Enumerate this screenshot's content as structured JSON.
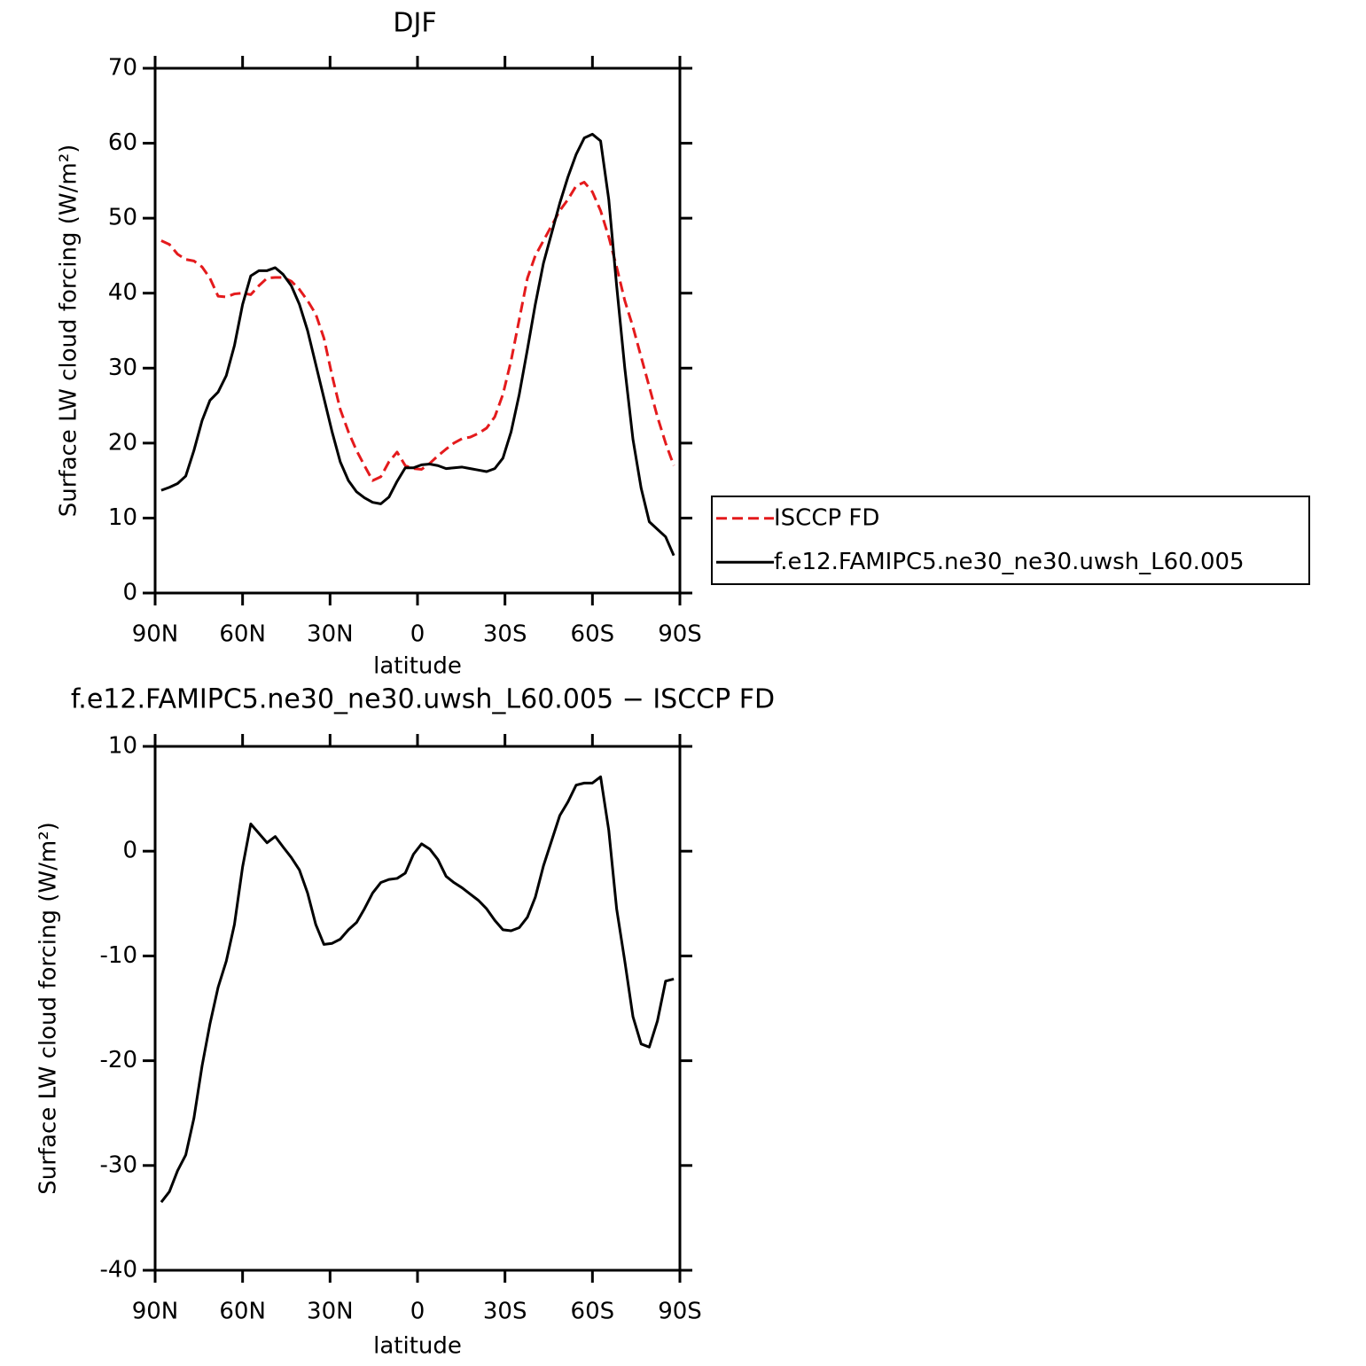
{
  "chart_data": [
    {
      "type": "line",
      "title": "DJF",
      "xlabel": "latitude",
      "ylabel": "Surface LW cloud forcing (W/m²)",
      "x": [
        87.9,
        85.1,
        82.3,
        79.5,
        76.7,
        73.9,
        71.2,
        68.4,
        65.6,
        62.8,
        60.0,
        57.2,
        54.4,
        51.6,
        48.8,
        46.1,
        43.3,
        40.5,
        37.7,
        34.9,
        32.1,
        29.3,
        26.5,
        23.7,
        20.9,
        18.2,
        15.4,
        12.6,
        9.8,
        7.0,
        4.2,
        1.4,
        -1.4,
        -4.2,
        -7.0,
        -9.8,
        -12.5,
        -15.3,
        -18.1,
        -20.9,
        -23.7,
        -26.5,
        -29.3,
        -32.1,
        -34.9,
        -37.7,
        -40.4,
        -43.2,
        -46.0,
        -48.8,
        -51.6,
        -54.4,
        -57.2,
        -60.0,
        -62.8,
        -65.6,
        -68.3,
        -71.1,
        -73.9,
        -76.7,
        -79.5,
        -82.3,
        -85.1,
        -87.9
      ],
      "series": [
        {
          "name": "ISCCP FD",
          "color": "#e41a1c",
          "linestyle": "dashed",
          "values": [
            47,
            46.5,
            45.2,
            44.5,
            44.3,
            43.5,
            42,
            39.6,
            39.5,
            39.9,
            40,
            39.8,
            41,
            42,
            42.1,
            42.1,
            41.6,
            40.5,
            39,
            37.2,
            34,
            29,
            24.5,
            21.5,
            19,
            17,
            15,
            15.5,
            17.5,
            18.8,
            17,
            16.6,
            16.5,
            17.3,
            18.3,
            19.2,
            20,
            20.6,
            20.8,
            21.3,
            22,
            23.5,
            26.5,
            31,
            36.5,
            42,
            45,
            47,
            49,
            51,
            52.5,
            54.3,
            54.8,
            53.5,
            51,
            47.5,
            43.5,
            39,
            35.5,
            31.5,
            27.5,
            23.5,
            20,
            17
          ]
        },
        {
          "name": "f.e12.FAMIPC5.ne30_ne30.uwsh_L60.005",
          "color": "#000000",
          "linestyle": "solid",
          "values": [
            13.7,
            14.1,
            14.6,
            15.6,
            19,
            23,
            25.7,
            26.8,
            29,
            33,
            38.5,
            42.3,
            43,
            43,
            43.4,
            42.5,
            41,
            38.5,
            35,
            30.5,
            26,
            21.5,
            17.5,
            15,
            13.5,
            12.7,
            12.1,
            11.9,
            12.8,
            14.9,
            16.7,
            16.7,
            17.1,
            17.2,
            17,
            16.6,
            16.7,
            16.8,
            16.6,
            16.4,
            16.2,
            16.6,
            18,
            21.5,
            26.5,
            32.5,
            38.5,
            44,
            48,
            52,
            55.5,
            58.5,
            60.7,
            61.2,
            60.3,
            52.5,
            41,
            30,
            20.5,
            14,
            9.5,
            8.5,
            7.5,
            5
          ]
        }
      ],
      "xlim": [
        90,
        -90
      ],
      "xticks": [
        {
          "value": 90,
          "label": "90N"
        },
        {
          "value": 60,
          "label": "60N"
        },
        {
          "value": 30,
          "label": "30N"
        },
        0,
        {
          "value": -30,
          "label": "30S"
        },
        {
          "value": -60,
          "label": "60S"
        },
        {
          "value": -90,
          "label": "90S"
        }
      ],
      "ylim": [
        0,
        70
      ],
      "yticks": [
        0,
        10,
        20,
        30,
        40,
        50,
        60,
        70
      ],
      "legend": "right"
    },
    {
      "type": "line",
      "title": "f.e12.FAMIPC5.ne30_ne30.uwsh_L60.005 − ISCCP FD",
      "xlabel": "latitude",
      "ylabel": "Surface LW cloud forcing (W/m²)",
      "x": [
        87.9,
        85.1,
        82.3,
        79.5,
        76.7,
        73.9,
        71.2,
        68.4,
        65.6,
        62.8,
        60.0,
        57.2,
        54.4,
        51.6,
        48.8,
        46.1,
        43.3,
        40.5,
        37.7,
        34.9,
        32.1,
        29.3,
        26.5,
        23.7,
        20.9,
        18.2,
        15.4,
        12.6,
        9.8,
        7.0,
        4.2,
        1.4,
        -1.4,
        -4.2,
        -7.0,
        -9.8,
        -12.5,
        -15.3,
        -18.1,
        -20.9,
        -23.7,
        -26.5,
        -29.3,
        -32.1,
        -34.9,
        -37.7,
        -40.4,
        -43.2,
        -46.0,
        -48.8,
        -51.6,
        -54.4,
        -57.2,
        -60.0,
        -62.8,
        -65.6,
        -68.3,
        -71.1,
        -73.9,
        -76.7,
        -79.5,
        -82.3,
        -85.1,
        -87.9
      ],
      "series": [
        {
          "color": "#000000",
          "linestyle": "solid",
          "values": [
            -33.5,
            -32.5,
            -30.5,
            -29,
            -25.5,
            -20.5,
            -16.5,
            -13,
            -10.5,
            -7,
            -1.5,
            2.6,
            1.7,
            0.8,
            1.4,
            0.4,
            -0.6,
            -1.8,
            -4,
            -7,
            -8.9,
            -8.8,
            -8.4,
            -7.5,
            -6.8,
            -5.5,
            -4,
            -3,
            -2.7,
            -2.6,
            -2.1,
            -0.3,
            0.7,
            0.2,
            -0.8,
            -2.4,
            -3,
            -3.5,
            -4.1,
            -4.7,
            -5.5,
            -6.6,
            -7.5,
            -7.6,
            -7.3,
            -6.3,
            -4.4,
            -1.4,
            1,
            3.4,
            4.7,
            6.3,
            6.5,
            6.5,
            7.1,
            2,
            -5.5,
            -10.5,
            -15.8,
            -18.4,
            -18.7,
            -16.2,
            -12.4,
            -12.2
          ]
        }
      ],
      "xlim": [
        90,
        -90
      ],
      "xticks": [
        {
          "value": 90,
          "label": "90N"
        },
        {
          "value": 60,
          "label": "60N"
        },
        {
          "value": 30,
          "label": "30N"
        },
        0,
        {
          "value": -30,
          "label": "30S"
        },
        {
          "value": -60,
          "label": "60S"
        },
        {
          "value": -90,
          "label": "90S"
        }
      ],
      "ylim": [
        -40,
        10
      ],
      "yticks": [
        -40,
        -30,
        -20,
        -10,
        0,
        10
      ]
    }
  ]
}
